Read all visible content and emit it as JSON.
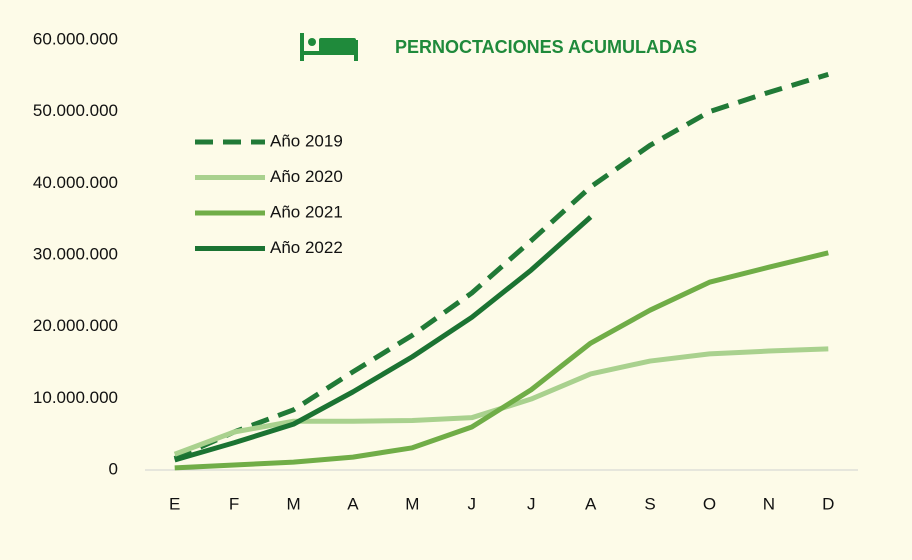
{
  "chart_data": {
    "type": "line",
    "title": "PERNOCTACIONES ACUMULADAS",
    "categories": [
      "E",
      "F",
      "M",
      "A",
      "M",
      "J",
      "J",
      "A",
      "S",
      "O",
      "N",
      "D"
    ],
    "series": [
      {
        "name": "Año 2019",
        "color": "#217a37",
        "dashed": true,
        "values": [
          1600000,
          5300000,
          8400000,
          13700000,
          18800000,
          24700000,
          32000000,
          39500000,
          45300000,
          50000000,
          52700000,
          55200000
        ]
      },
      {
        "name": "Año 2020",
        "color": "#a9d18e",
        "dashed": false,
        "values": [
          2200000,
          5300000,
          6800000,
          6800000,
          6900000,
          7300000,
          9900000,
          13400000,
          15200000,
          16200000,
          16600000,
          16900000
        ]
      },
      {
        "name": "Año 2021",
        "color": "#70ad47",
        "dashed": false,
        "values": [
          300000,
          700000,
          1100000,
          1800000,
          3100000,
          6000000,
          11200000,
          17700000,
          22300000,
          26200000,
          28300000,
          30300000
        ]
      },
      {
        "name": "Año 2022",
        "color": "#1b7332",
        "dashed": false,
        "values": [
          1400000,
          3800000,
          6400000,
          10900000,
          15800000,
          21300000,
          27900000,
          35300000,
          null,
          null,
          null,
          null
        ]
      }
    ],
    "ylim": [
      0,
      60000000
    ],
    "yticks": [
      0,
      {
        "value": 10000000,
        "label": "10.000.000"
      },
      {
        "value": 20000000,
        "label": "20.000.000"
      },
      {
        "value": 30000000,
        "label": "30.000.000"
      },
      {
        "value": 40000000,
        "label": "40.000.000"
      },
      {
        "value": 50000000,
        "label": "50.000.000"
      },
      {
        "value": 60000000,
        "label": "60.000.000"
      }
    ],
    "grid": false
  }
}
